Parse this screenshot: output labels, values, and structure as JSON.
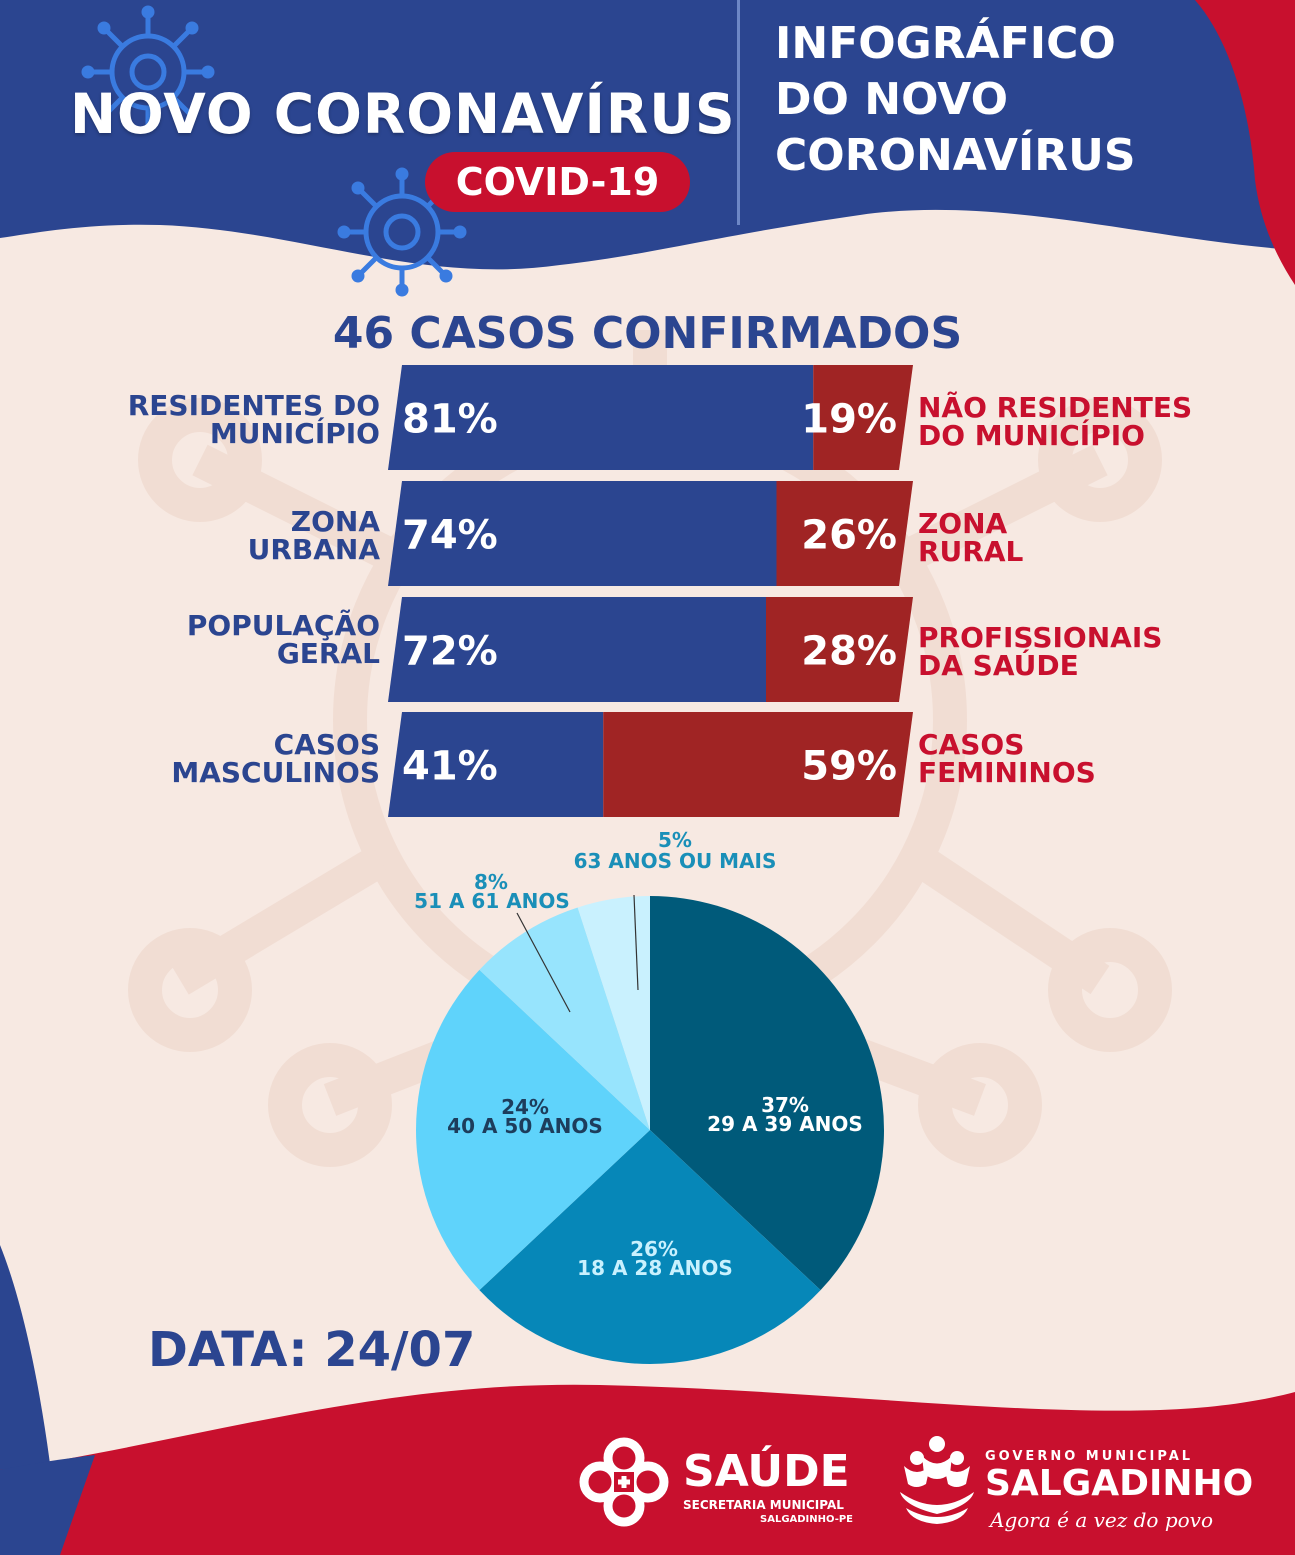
{
  "header": {
    "title": "NOVO CORONAVÍRUS",
    "badge": "COVID-19",
    "right_title_lines": [
      "INFOGRÁFICO",
      "DO NOVO",
      "CORONAVÍRUS"
    ]
  },
  "colors": {
    "blue": "#2b4590",
    "red": "#a02424",
    "red_bright": "#c8102e",
    "background": "#f7e9e2"
  },
  "chart_data": [
    {
      "type": "bar",
      "title": "46 CASOS CONFIRMADOS",
      "orientation": "horizontal-stacked-100",
      "rows": [
        {
          "left_label_lines": [
            "RESIDENTES DO",
            "MUNICÍPIO"
          ],
          "left_value": 81,
          "left_text": "81%",
          "right_label_lines": [
            "NÃO RESIDENTES",
            "DO MUNICÍPIO"
          ],
          "right_value": 19,
          "right_text": "19%"
        },
        {
          "left_label_lines": [
            "ZONA",
            "URBANA"
          ],
          "left_value": 74,
          "left_text": "74%",
          "right_label_lines": [
            "ZONA",
            "RURAL"
          ],
          "right_value": 26,
          "right_text": "26%"
        },
        {
          "left_label_lines": [
            "POPULAÇÃO",
            "GERAL"
          ],
          "left_value": 72,
          "left_text": "72%",
          "right_label_lines": [
            "PROFISSIONAIS",
            "DA SAÚDE"
          ],
          "right_value": 28,
          "right_text": "28%"
        },
        {
          "left_label_lines": [
            "CASOS",
            "MASCULINOS"
          ],
          "left_value": 41,
          "left_text": "41%",
          "right_label_lines": [
            "CASOS",
            "FEMININOS"
          ],
          "right_value": 59,
          "right_text": "59%"
        }
      ]
    },
    {
      "type": "pie",
      "slices": [
        {
          "value": 37,
          "pct_text": "37%",
          "label": "29 A 39 ANOS",
          "color": "#005a7a"
        },
        {
          "value": 26,
          "pct_text": "26%",
          "label": "18 A 28 ANOS",
          "color": "#0687b8"
        },
        {
          "value": 24,
          "pct_text": "24%",
          "label": "40 A 50 ANOS",
          "color": "#5fd3fb"
        },
        {
          "value": 8,
          "pct_text": "8%",
          "label": "51 A 61 ANOS",
          "color": "#97e4fd"
        },
        {
          "value": 5,
          "pct_text": "5%",
          "label": "63 ANOS OU MAIS",
          "color": "#c9f1fe"
        }
      ]
    }
  ],
  "footer": {
    "date": "DATA: 24/07",
    "saude_title": "SAÚDE",
    "saude_sub": "SECRETARIA MUNICIPAL",
    "saude_place": "SALGADINHO-PE",
    "gov_top": "GOVERNO MUNICIPAL",
    "gov_name": "SALGADINHO",
    "gov_slogan": "Agora é a vez do povo"
  }
}
